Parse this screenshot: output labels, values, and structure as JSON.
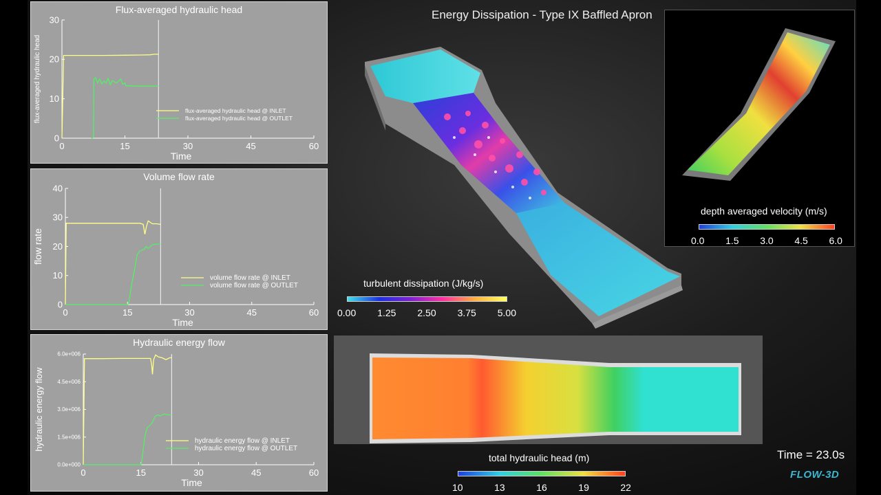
{
  "main_title": "Energy Dissipation - Type IX Baffled Apron",
  "time_label": "Time = 23.0s",
  "logo": "FLOW-3D",
  "colors": {
    "inlet": "#ffff88",
    "outlet": "#55ee66",
    "panel_bg": "#a0a0a0"
  },
  "turbulent_colorbar": {
    "label": "turbulent dissipation (J/kg/s)",
    "ticks": [
      "0.00",
      "1.25",
      "2.50",
      "3.75",
      "5.00"
    ]
  },
  "velocity_colorbar": {
    "label": "depth averaged velocity (m/s)",
    "ticks": [
      "0.0",
      "1.5",
      "3.0",
      "4.5",
      "6.0"
    ]
  },
  "head_colorbar": {
    "label": "total hydraulic head (m)",
    "ticks": [
      "10",
      "13",
      "16",
      "19",
      "22"
    ]
  },
  "chart_data": [
    {
      "type": "line",
      "title": "Flux-averaged hydraulic head",
      "xlabel": "Time",
      "ylabel": "flux-averaged hydraulic head",
      "xlim": [
        0,
        60
      ],
      "ylim": [
        0,
        30
      ],
      "xticks": [
        "0",
        "15",
        "30",
        "45",
        "60"
      ],
      "yticks": [
        "0",
        "10",
        "20",
        "30"
      ],
      "current_time": 23,
      "series": [
        {
          "name": "flux-averaged hydraulic head @ INLET",
          "color": "#ffff88",
          "points": [
            [
              0,
              0
            ],
            [
              0.4,
              21
            ],
            [
              2,
              21
            ],
            [
              6,
              21
            ],
            [
              10,
              21
            ],
            [
              15,
              21.05
            ],
            [
              19,
              21.1
            ],
            [
              21,
              21.15
            ],
            [
              22,
              21.3
            ],
            [
              23,
              21.3
            ]
          ]
        },
        {
          "name": "flux-averaged hydraulic head @ OUTLET",
          "color": "#55ee66",
          "points": [
            [
              7,
              0
            ],
            [
              7.5,
              0.2
            ],
            [
              7.6,
              15
            ],
            [
              8,
              15.4
            ],
            [
              8.5,
              14
            ],
            [
              9,
              15
            ],
            [
              9.5,
              13.8
            ],
            [
              10,
              14.5
            ],
            [
              10.5,
              14
            ],
            [
              11,
              15.2
            ],
            [
              11.5,
              13.6
            ],
            [
              12,
              14.6
            ],
            [
              13,
              14
            ],
            [
              14,
              15
            ],
            [
              14.5,
              13.7
            ],
            [
              15,
              14
            ],
            [
              15.2,
              13.3
            ],
            [
              18,
              13.2
            ],
            [
              23,
              13.2
            ]
          ]
        }
      ]
    },
    {
      "type": "line",
      "title": "Volume flow rate",
      "xlabel": "Time",
      "ylabel": "flow rate",
      "xlim": [
        0,
        60
      ],
      "ylim": [
        0,
        40
      ],
      "xticks": [
        "0",
        "15",
        "30",
        "45",
        "60"
      ],
      "yticks": [
        "0",
        "10",
        "20",
        "30",
        "40"
      ],
      "current_time": 23,
      "series": [
        {
          "name": "volume flow rate @ INLET",
          "color": "#ffff88",
          "points": [
            [
              0,
              0
            ],
            [
              0.2,
              28
            ],
            [
              5,
              28
            ],
            [
              10,
              28
            ],
            [
              15,
              28
            ],
            [
              18,
              28
            ],
            [
              18.8,
              27.6
            ],
            [
              19.2,
              24.2
            ],
            [
              19.6,
              27
            ],
            [
              20,
              28.8
            ],
            [
              20.5,
              28.3
            ],
            [
              21,
              27.8
            ],
            [
              22,
              27.8
            ],
            [
              23,
              27.6
            ]
          ]
        },
        {
          "name": "volume flow rate @ OUTLET",
          "color": "#55ee66",
          "points": [
            [
              0,
              0
            ],
            [
              15,
              0
            ],
            [
              15.3,
              0.5
            ],
            [
              16,
              7
            ],
            [
              16.7,
              12
            ],
            [
              17.3,
              17
            ],
            [
              18,
              18.5
            ],
            [
              19,
              19
            ],
            [
              19.5,
              20
            ],
            [
              20,
              19.3
            ],
            [
              21,
              20.6
            ],
            [
              22,
              20.8
            ],
            [
              23,
              20.8
            ]
          ]
        }
      ]
    },
    {
      "type": "line",
      "title": "Hydraulic energy flow",
      "xlabel": "Time",
      "ylabel": "hydraulic energy flow",
      "xlim": [
        0,
        60
      ],
      "ylim": [
        0,
        6000000
      ],
      "xticks": [
        "0",
        "15",
        "30",
        "45",
        "60"
      ],
      "yticks": [
        "0.0e+000",
        "1.5e+006",
        "3.0e+006",
        "4.5e+006",
        "6.0e+006"
      ],
      "current_time": 23,
      "series": [
        {
          "name": "hydraulic energy flow @ INLET",
          "color": "#ffff88",
          "points": [
            [
              0,
              0
            ],
            [
              0.3,
              5750000
            ],
            [
              5,
              5750000
            ],
            [
              10,
              5760000
            ],
            [
              15,
              5760000
            ],
            [
              17,
              5760000
            ],
            [
              17.5,
              5760000
            ],
            [
              17.8,
              5400000
            ],
            [
              18,
              4900000
            ],
            [
              18.3,
              5700000
            ],
            [
              18.8,
              5950000
            ],
            [
              19.5,
              5850000
            ],
            [
              20.5,
              5800000
            ],
            [
              21.5,
              5700000
            ],
            [
              22.5,
              5800000
            ],
            [
              23,
              5800000
            ]
          ]
        },
        {
          "name": "hydraulic energy flow @ OUTLET",
          "color": "#55ee66",
          "points": [
            [
              0,
              0
            ],
            [
              15,
              0
            ],
            [
              15.3,
              300000
            ],
            [
              16,
              1500000
            ],
            [
              16.6,
              2000000
            ],
            [
              17.2,
              2100000
            ],
            [
              18,
              2300000
            ],
            [
              18.6,
              2600000
            ],
            [
              19.3,
              2700000
            ],
            [
              20,
              2650000
            ],
            [
              21,
              2750000
            ],
            [
              22,
              2700000
            ],
            [
              23,
              2700000
            ]
          ]
        }
      ]
    }
  ]
}
